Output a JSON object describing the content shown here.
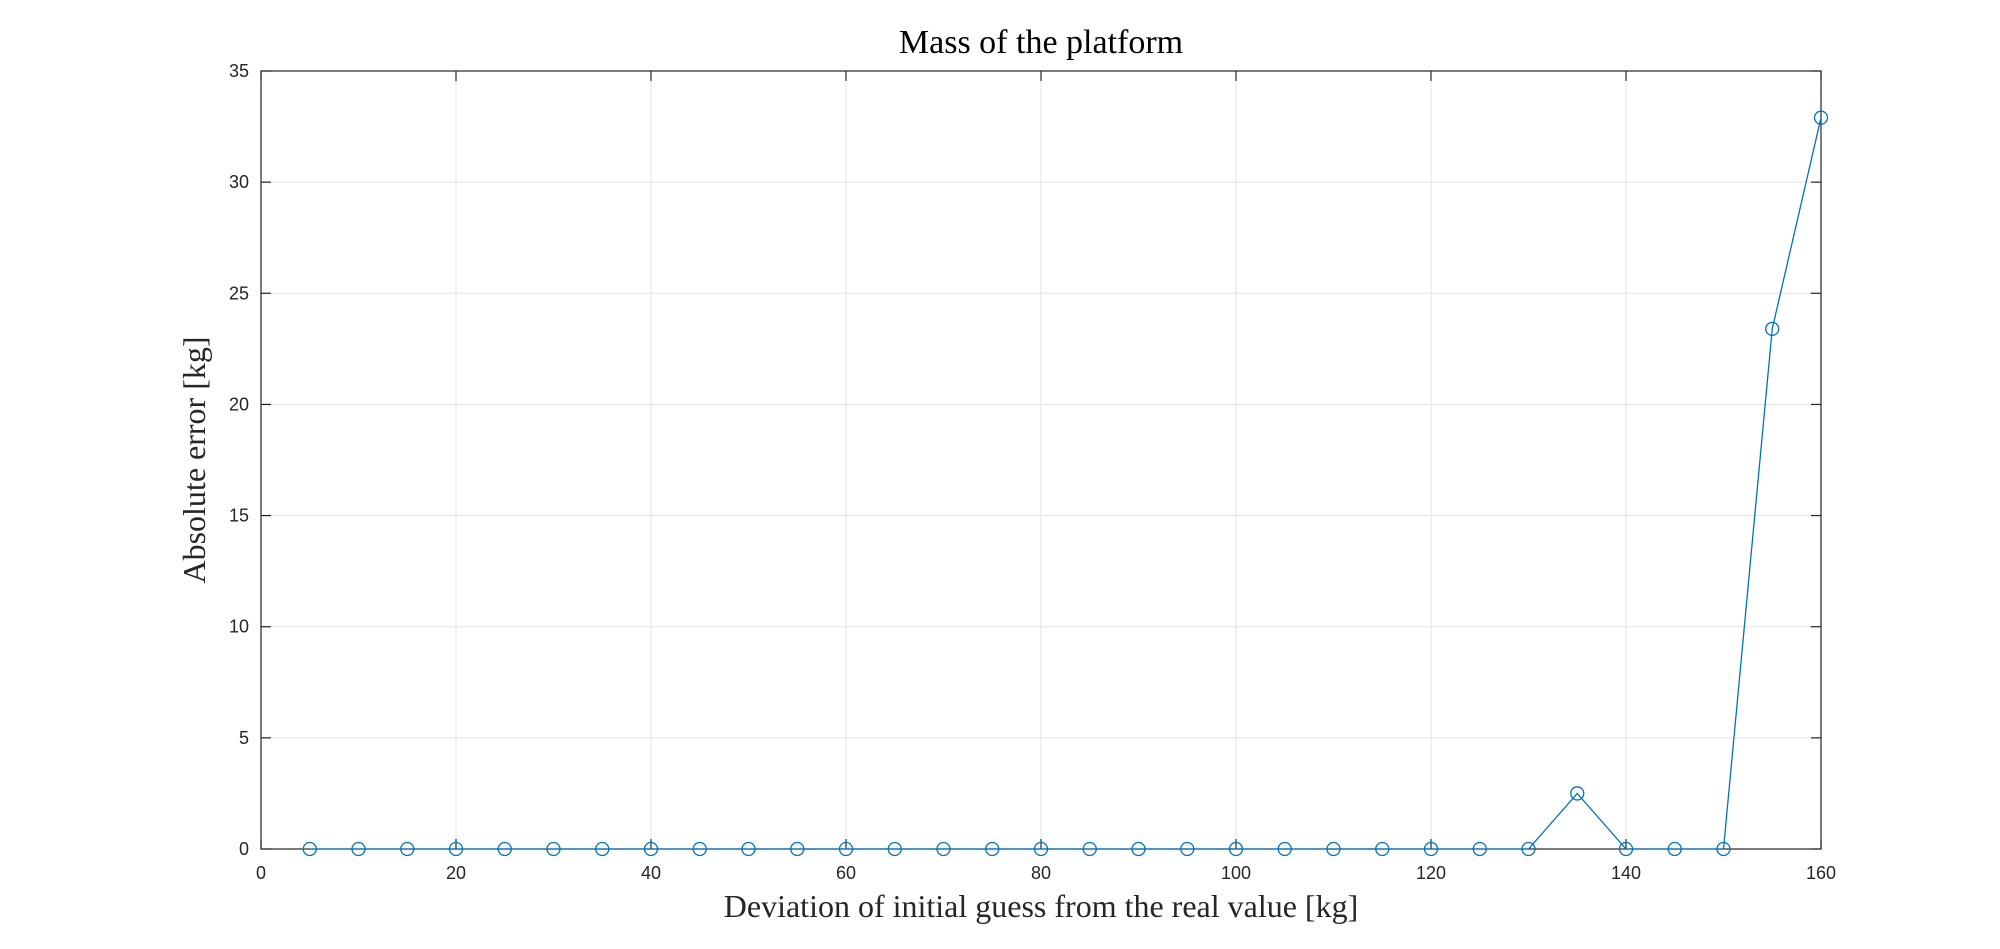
{
  "chart_data": {
    "type": "line",
    "title": "Mass of the platform",
    "xlabel": "Deviation of initial guess from the real value [kg]",
    "ylabel": "Absolute error [kg]",
    "xlim": [
      0,
      160
    ],
    "ylim": [
      0,
      35
    ],
    "xticks": [
      0,
      20,
      40,
      60,
      80,
      100,
      120,
      140,
      160
    ],
    "yticks": [
      0,
      5,
      10,
      15,
      20,
      25,
      30,
      35
    ],
    "grid": true,
    "marker": "circle-open",
    "series": [
      {
        "color": "#0072BD",
        "x": [
          5,
          10,
          15,
          20,
          25,
          30,
          35,
          40,
          45,
          50,
          55,
          60,
          65,
          70,
          75,
          80,
          85,
          90,
          95,
          100,
          105,
          110,
          115,
          120,
          125,
          130,
          135,
          140,
          145,
          150,
          155,
          160
        ],
        "y": [
          0,
          0,
          0,
          0,
          0,
          0,
          0,
          0,
          0,
          0,
          0,
          0,
          0,
          0,
          0,
          0,
          0,
          0,
          0,
          0,
          0,
          0,
          0,
          0,
          0,
          0,
          2.5,
          0,
          0,
          0,
          23.4,
          32.9
        ]
      }
    ]
  }
}
